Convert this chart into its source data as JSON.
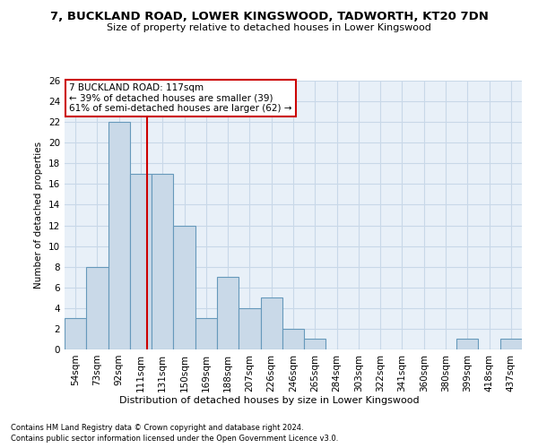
{
  "title": "7, BUCKLAND ROAD, LOWER KINGSWOOD, TADWORTH, KT20 7DN",
  "subtitle": "Size of property relative to detached houses in Lower Kingswood",
  "xlabel_bottom": "Distribution of detached houses by size in Lower Kingswood",
  "ylabel": "Number of detached properties",
  "categories": [
    "54sqm",
    "73sqm",
    "92sqm",
    "111sqm",
    "131sqm",
    "150sqm",
    "169sqm",
    "188sqm",
    "207sqm",
    "226sqm",
    "246sqm",
    "265sqm",
    "284sqm",
    "303sqm",
    "322sqm",
    "341sqm",
    "360sqm",
    "380sqm",
    "399sqm",
    "418sqm",
    "437sqm"
  ],
  "values": [
    3,
    8,
    22,
    17,
    17,
    12,
    3,
    7,
    4,
    5,
    2,
    1,
    0,
    0,
    0,
    0,
    0,
    0,
    1,
    0,
    1
  ],
  "bar_color": "#c9d9e8",
  "bar_edge_color": "#6699bb",
  "vline_color": "#cc0000",
  "vline_x": 3.3,
  "annotation_title": "7 BUCKLAND ROAD: 117sqm",
  "annotation_line1": "← 39% of detached houses are smaller (39)",
  "annotation_line2": "61% of semi-detached houses are larger (62) →",
  "annotation_box_facecolor": "#ffffff",
  "annotation_box_edgecolor": "#cc0000",
  "ylim": [
    0,
    26
  ],
  "yticks": [
    0,
    2,
    4,
    6,
    8,
    10,
    12,
    14,
    16,
    18,
    20,
    22,
    24,
    26
  ],
  "grid_color": "#c8d8e8",
  "bg_color": "#e8f0f8",
  "footnote1": "Contains HM Land Registry data © Crown copyright and database right 2024.",
  "footnote2": "Contains public sector information licensed under the Open Government Licence v3.0."
}
